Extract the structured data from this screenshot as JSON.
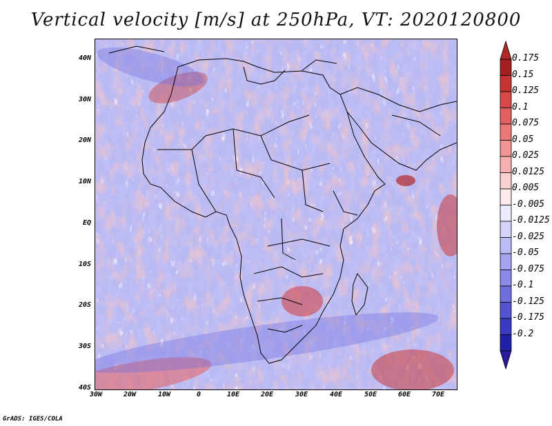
{
  "title": "Vertical velocity [m/s] at 250hPa, VT: 2020120800",
  "credit": "GrADS: IGES/COLA",
  "lat_labels": [
    "40N",
    "30N",
    "20N",
    "10N",
    "EQ",
    "10S",
    "20S",
    "30S",
    "40S"
  ],
  "lon_labels": [
    "30W",
    "20W",
    "10W",
    "0",
    "10E",
    "20E",
    "30E",
    "40E",
    "50E",
    "60E",
    "70E"
  ],
  "colorbar": {
    "labels": [
      "0.175",
      "0.15",
      "0.125",
      "0.1",
      "0.075",
      "0.05",
      "0.025",
      "0.0125",
      "0.005",
      "-0.005",
      "-0.0125",
      "-0.025",
      "-0.05",
      "-0.075",
      "-0.1",
      "-0.125",
      "-0.175",
      "-0.2"
    ],
    "colors": [
      "#a51f1f",
      "#c53333",
      "#d94848",
      "#e45f5f",
      "#ec7878",
      "#f19494",
      "#f6b0b0",
      "#fad0d0",
      "#fdeaea",
      "#ececff",
      "#d4d4fb",
      "#bcbcf6",
      "#a4a4f0",
      "#8a8ae8",
      "#6f6fde",
      "#5454d2",
      "#3a3ac4",
      "#2020a8"
    ],
    "top_color": "#b02828",
    "bottom_color": "#2a1aa0"
  }
}
